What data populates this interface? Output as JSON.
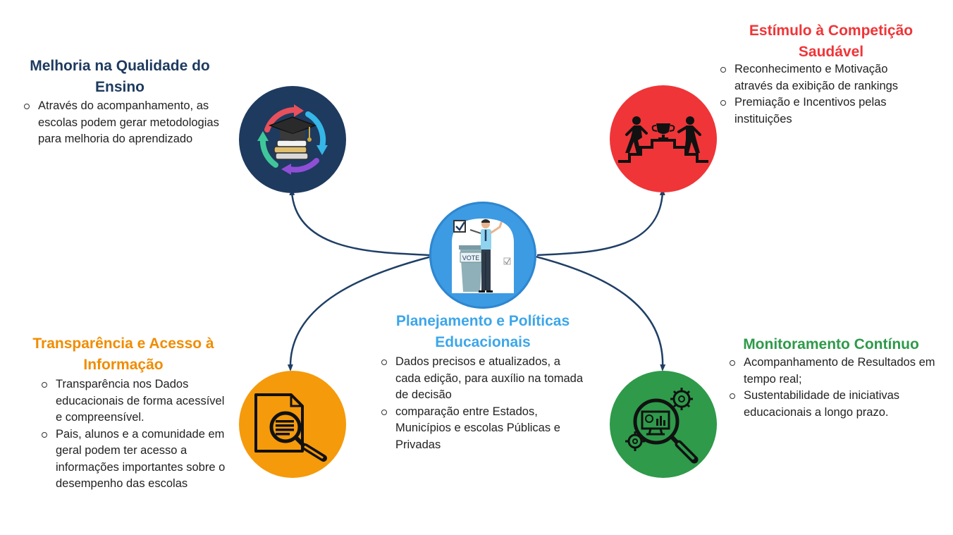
{
  "colors": {
    "connector": "#1f3f66",
    "navy": "#1e3a5f",
    "red": "#ef3538",
    "orange": "#f59a0b",
    "green": "#2e9a4a",
    "blue": "#3c9be3"
  },
  "center": {
    "icon": "voting-teacher-icon",
    "vote_label": "VOTE",
    "title": "Planejamento e Políticas Educacionais",
    "bullets": [
      "Dados precisos e atualizados, a cada edição,  para auxílio na tomada de decisão",
      "comparação entre Estados, Municípios e escolas Públicas e Privadas"
    ]
  },
  "top_left": {
    "icon": "graduation-cycle-icon",
    "title": "Melhoria na Qualidade do Ensino",
    "bullets": [
      "Através do acompanhamento, as escolas podem gerar metodologias para melhoria do aprendizado"
    ]
  },
  "top_right": {
    "icon": "competition-trophy-icon",
    "title": "Estímulo à Competição Saudável",
    "bullets": [
      "Reconhecimento e Motivação através da exibição de rankings",
      "Premiação e Incentivos pelas instituições"
    ]
  },
  "bottom_left": {
    "icon": "document-search-icon",
    "title": "Transparência e Acesso à Informação",
    "bullets": [
      "Transparência nos Dados educacionais de forma acessível e compreensível.",
      "Pais, alunos e a comunidade em geral podem ter acesso a informações importantes sobre o desempenho das escolas"
    ]
  },
  "bottom_right": {
    "icon": "monitoring-analytics-icon",
    "title": "Monitoramento Contínuo",
    "bullets": [
      "Acompanhamento de Resultados em tempo real;",
      "Sustentabilidade de iniciativas educacionais a longo prazo."
    ]
  }
}
